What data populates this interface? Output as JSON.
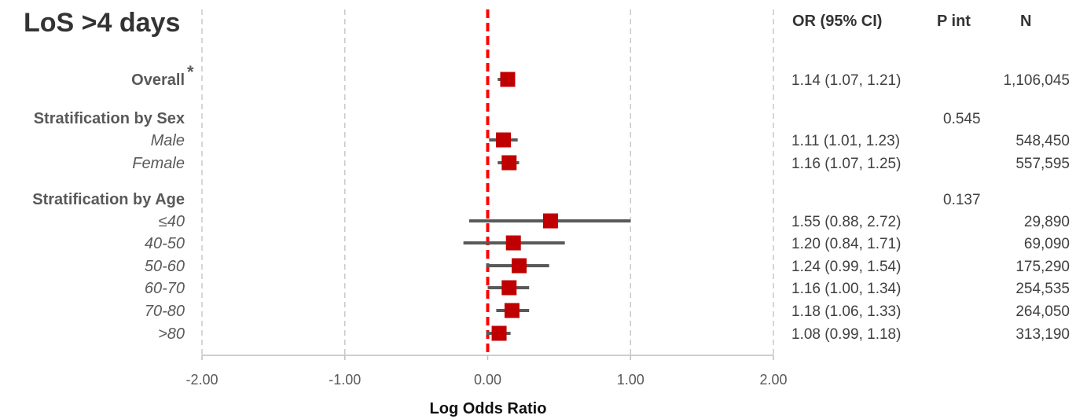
{
  "chart_data": {
    "type": "forest",
    "title": "LoS >4 days",
    "xlabel": "Log Odds Ratio",
    "xlim": [
      -2.0,
      2.0
    ],
    "xticks": [
      -2.0,
      -1.0,
      0.0,
      1.0,
      2.0
    ],
    "x_tick_labels": [
      "-2.00",
      "-1.00",
      "0.00",
      "1.00",
      "2.00"
    ],
    "reference_line_x": 0.0,
    "grid": "vertical dashed",
    "columns": {
      "or_header": "OR (95% CI)",
      "p_header": "P int",
      "n_header": "N"
    },
    "marker_color": "#c00000",
    "ci_color": "#595959",
    "reference_color": "#ff0000",
    "rows": [
      {
        "label": "Overall",
        "marker_note": "*",
        "style": "group",
        "point": 0.14,
        "ci": [
          0.07,
          0.19
        ],
        "or_text": "1.14 (1.07, 1.21)",
        "p_int": "",
        "n": "1,106,045"
      },
      {
        "label": "Stratification by Sex",
        "style": "group",
        "point": null,
        "ci": null,
        "or_text": "",
        "p_int": "0.545",
        "n": ""
      },
      {
        "label": "Male",
        "style": "sub",
        "point": 0.11,
        "ci": [
          0.01,
          0.21
        ],
        "or_text": "1.11 (1.01, 1.23)",
        "p_int": "",
        "n": "548,450"
      },
      {
        "label": "Female",
        "style": "sub",
        "point": 0.15,
        "ci": [
          0.07,
          0.22
        ],
        "or_text": "1.16 (1.07, 1.25)",
        "p_int": "",
        "n": "557,595"
      },
      {
        "label": "Stratification by Age",
        "style": "group",
        "point": null,
        "ci": null,
        "or_text": "",
        "p_int": "0.137",
        "n": ""
      },
      {
        "label": "≤40",
        "style": "sub",
        "point": 0.44,
        "ci": [
          -0.13,
          1.0
        ],
        "or_text": "1.55 (0.88, 2.72)",
        "p_int": "",
        "n": "29,890"
      },
      {
        "label": "40-50",
        "style": "sub",
        "point": 0.18,
        "ci": [
          -0.17,
          0.54
        ],
        "or_text": "1.20 (0.84, 1.71)",
        "p_int": "",
        "n": "69,090"
      },
      {
        "label": "50-60",
        "style": "sub",
        "point": 0.22,
        "ci": [
          -0.01,
          0.43
        ],
        "or_text": "1.24 (0.99, 1.54)",
        "p_int": "",
        "n": "175,290"
      },
      {
        "label": "60-70",
        "style": "sub",
        "point": 0.15,
        "ci": [
          0.0,
          0.29
        ],
        "or_text": "1.16 (1.00, 1.34)",
        "p_int": "",
        "n": "254,535"
      },
      {
        "label": "70-80",
        "style": "sub",
        "point": 0.17,
        "ci": [
          0.06,
          0.29
        ],
        "or_text": "1.18 (1.06, 1.33)",
        "p_int": "",
        "n": "264,050"
      },
      {
        "label": ">80",
        "style": "sub",
        "point": 0.08,
        "ci": [
          -0.01,
          0.16
        ],
        "or_text": "1.08 (0.99, 1.18)",
        "p_int": "",
        "n": "313,190"
      }
    ]
  }
}
